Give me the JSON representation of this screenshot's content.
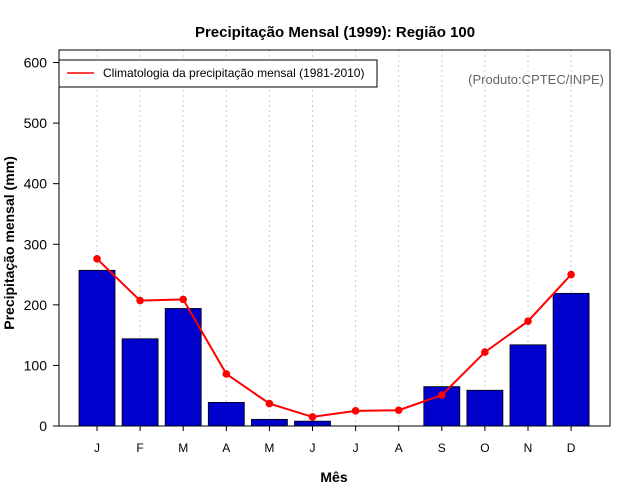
{
  "chart_data": {
    "type": "bar",
    "title": "Precipitação Mensal (1999): Região 100",
    "xlabel": "Mês",
    "ylabel": "Precipitação mensal (mm)",
    "ylim": [
      0,
      600
    ],
    "yticks": [
      0,
      100,
      200,
      300,
      400,
      500,
      600
    ],
    "categories": [
      "J",
      "F",
      "M",
      "A",
      "M",
      "J",
      "J",
      "A",
      "S",
      "O",
      "N",
      "D"
    ],
    "series": [
      {
        "name": "Precipitação mensal (1999)",
        "type": "bar",
        "color": "#0000CC",
        "values": [
          257,
          144,
          194,
          39,
          11,
          8,
          0,
          0,
          65,
          59,
          134,
          219
        ]
      },
      {
        "name": "Climatologia da precipitação mensal (1981-2010)",
        "type": "line",
        "color": "#FF0000",
        "values": [
          276,
          207,
          209,
          86,
          37,
          15,
          25,
          26,
          51,
          122,
          173,
          250
        ]
      }
    ],
    "legend": {
      "position": "top-left",
      "entries": [
        "Climatologia da precipitação mensal (1981-2010)"
      ]
    },
    "annotation": "(Produto:CPTEC/INPE)",
    "grid": "vertical dotted"
  }
}
